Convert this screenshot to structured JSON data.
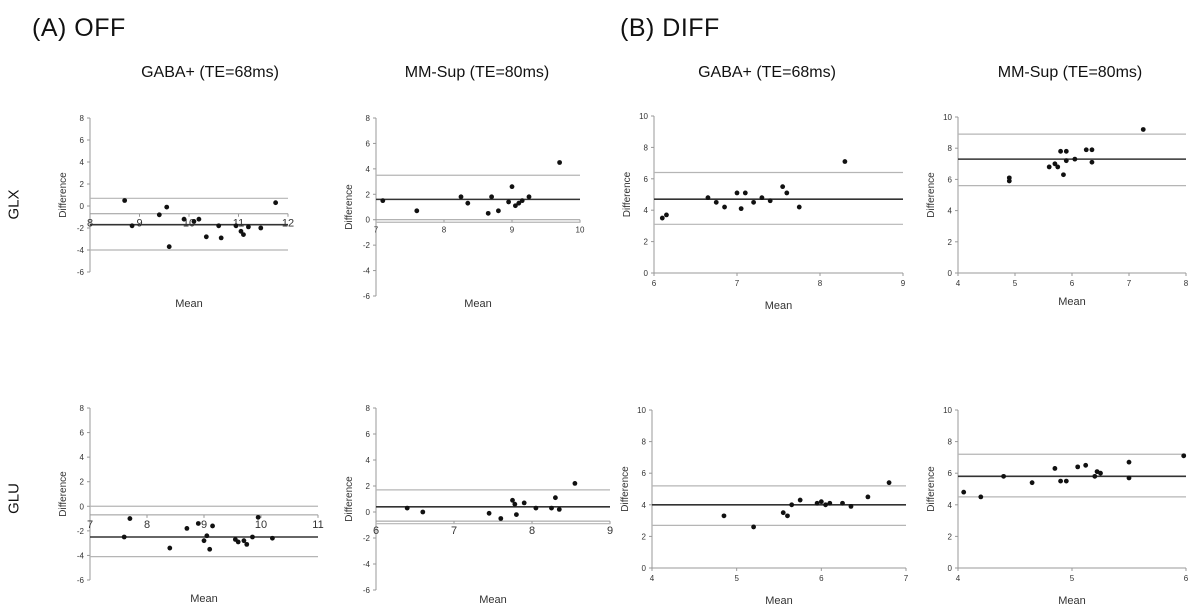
{
  "headers": {
    "section_a": "(A) OFF",
    "section_b": "(B) DIFF",
    "col1": "GABA+ (TE=68ms)",
    "col2": "MM-Sup (TE=80ms)",
    "col3": "GABA+ (TE=68ms)",
    "col4": "MM-Sup (TE=80ms)",
    "row1": "GLX",
    "row2": "GLU"
  },
  "chart_data": [
    {
      "id": "off-glx-gaba",
      "type": "scatter",
      "xlabel": "Mean",
      "ylabel": "Difference",
      "xlim": [
        8,
        12
      ],
      "ylim": [
        -6,
        8
      ],
      "xticks": [
        8,
        9,
        10,
        11,
        12
      ],
      "yticks": [
        -6,
        -4,
        -2,
        0,
        2,
        4,
        6,
        8
      ],
      "xaxis_at": -0.7,
      "hlines": [
        {
          "y": 0.7,
          "style": "limit"
        },
        {
          "y": -1.7,
          "style": "mean"
        },
        {
          "y": -4.0,
          "style": "limit"
        }
      ],
      "points": [
        [
          8.7,
          0.5
        ],
        [
          8.85,
          -1.8
        ],
        [
          9.4,
          -0.8
        ],
        [
          9.55,
          -0.1
        ],
        [
          9.6,
          -3.7
        ],
        [
          9.9,
          -1.2
        ],
        [
          10.1,
          -1.4
        ],
        [
          10.2,
          -1.2
        ],
        [
          10.35,
          -2.8
        ],
        [
          10.6,
          -1.8
        ],
        [
          10.65,
          -2.9
        ],
        [
          10.95,
          -1.8
        ],
        [
          11.05,
          -2.3
        ],
        [
          11.1,
          -2.6
        ],
        [
          11.2,
          -1.9
        ],
        [
          11.45,
          -2.0
        ],
        [
          11.75,
          0.3
        ]
      ]
    },
    {
      "id": "off-glx-mmsup",
      "type": "scatter",
      "xlabel": "Mean",
      "ylabel": "Difference",
      "xlim": [
        7,
        10
      ],
      "ylim": [
        -6,
        8
      ],
      "xticks": [
        7,
        8,
        9,
        10
      ],
      "yticks": [
        -6,
        -4,
        -2,
        0,
        2,
        4,
        6,
        8
      ],
      "xaxis_at": 0,
      "hlines": [
        {
          "y": 3.5,
          "style": "limit"
        },
        {
          "y": 1.6,
          "style": "mean"
        },
        {
          "y": -0.2,
          "style": "limit"
        }
      ],
      "points": [
        [
          7.1,
          1.5
        ],
        [
          7.6,
          0.7
        ],
        [
          8.25,
          1.8
        ],
        [
          8.35,
          1.3
        ],
        [
          8.65,
          0.5
        ],
        [
          8.7,
          1.8
        ],
        [
          8.8,
          0.7
        ],
        [
          8.95,
          1.4
        ],
        [
          9.0,
          2.6
        ],
        [
          9.05,
          1.1
        ],
        [
          9.1,
          1.3
        ],
        [
          9.15,
          1.5
        ],
        [
          9.25,
          1.8
        ],
        [
          9.7,
          4.5
        ]
      ]
    },
    {
      "id": "diff-glx-gaba",
      "type": "scatter",
      "xlabel": "Mean",
      "ylabel": "Difference",
      "xlim": [
        6,
        9
      ],
      "ylim": [
        0,
        10
      ],
      "xticks": [
        6,
        7,
        8,
        9
      ],
      "yticks": [
        0,
        2,
        4,
        6,
        8,
        10
      ],
      "xaxis_at": 0,
      "hlines": [
        {
          "y": 6.4,
          "style": "limit"
        },
        {
          "y": 4.7,
          "style": "mean"
        },
        {
          "y": 3.1,
          "style": "limit"
        }
      ],
      "points": [
        [
          6.1,
          3.5
        ],
        [
          6.15,
          3.7
        ],
        [
          6.65,
          4.8
        ],
        [
          6.75,
          4.5
        ],
        [
          6.85,
          4.2
        ],
        [
          7.0,
          5.1
        ],
        [
          7.05,
          4.1
        ],
        [
          7.1,
          5.1
        ],
        [
          7.2,
          4.5
        ],
        [
          7.3,
          4.8
        ],
        [
          7.4,
          4.6
        ],
        [
          7.55,
          5.5
        ],
        [
          7.6,
          5.1
        ],
        [
          7.75,
          4.2
        ],
        [
          8.3,
          7.1
        ]
      ]
    },
    {
      "id": "diff-glx-mmsup",
      "type": "scatter",
      "xlabel": "Mean",
      "ylabel": "Difference",
      "xlim": [
        4,
        8
      ],
      "ylim": [
        0,
        10
      ],
      "xticks": [
        4,
        5,
        6,
        7,
        8
      ],
      "yticks": [
        0,
        2,
        4,
        6,
        8,
        10
      ],
      "xaxis_at": 0,
      "hlines": [
        {
          "y": 8.9,
          "style": "limit"
        },
        {
          "y": 7.3,
          "style": "mean"
        },
        {
          "y": 5.6,
          "style": "limit"
        }
      ],
      "points": [
        [
          4.9,
          6.1
        ],
        [
          4.9,
          5.9
        ],
        [
          5.6,
          6.8
        ],
        [
          5.7,
          7.0
        ],
        [
          5.75,
          6.8
        ],
        [
          5.8,
          7.8
        ],
        [
          5.85,
          6.3
        ],
        [
          5.9,
          7.8
        ],
        [
          5.9,
          7.2
        ],
        [
          6.05,
          7.3
        ],
        [
          6.25,
          7.9
        ],
        [
          6.35,
          7.1
        ],
        [
          6.35,
          7.9
        ],
        [
          7.25,
          9.2
        ]
      ]
    },
    {
      "id": "off-glu-gaba",
      "type": "scatter",
      "xlabel": "Mean",
      "ylabel": "Difference",
      "xlim": [
        7,
        11
      ],
      "ylim": [
        -6,
        8
      ],
      "xticks": [
        7,
        8,
        9,
        10,
        11
      ],
      "yticks": [
        -6,
        -4,
        -2,
        0,
        2,
        4,
        6,
        8
      ],
      "xaxis_at": -0.7,
      "hlines": [
        {
          "y": 0.0,
          "style": "limit"
        },
        {
          "y": -2.5,
          "style": "mean"
        },
        {
          "y": -4.1,
          "style": "limit"
        }
      ],
      "points": [
        [
          7.6,
          -2.5
        ],
        [
          7.7,
          -1.0
        ],
        [
          8.4,
          -3.4
        ],
        [
          8.7,
          -1.8
        ],
        [
          8.9,
          -1.4
        ],
        [
          9.0,
          -2.8
        ],
        [
          9.05,
          -2.4
        ],
        [
          9.1,
          -3.5
        ],
        [
          9.15,
          -1.6
        ],
        [
          9.55,
          -2.7
        ],
        [
          9.6,
          -2.9
        ],
        [
          9.7,
          -2.8
        ],
        [
          9.75,
          -3.1
        ],
        [
          9.85,
          -2.5
        ],
        [
          9.95,
          -0.9
        ],
        [
          10.2,
          -2.6
        ]
      ]
    },
    {
      "id": "off-glu-mmsup",
      "type": "scatter",
      "xlabel": "Mean",
      "ylabel": "Difference",
      "xlim": [
        6,
        9
      ],
      "ylim": [
        -6,
        8
      ],
      "xticks": [
        6,
        7,
        8,
        9
      ],
      "yticks": [
        -6,
        -4,
        -2,
        0,
        2,
        4,
        6,
        8
      ],
      "xaxis_at": -0.7,
      "hlines": [
        {
          "y": 1.7,
          "style": "limit"
        },
        {
          "y": 0.4,
          "style": "mean"
        },
        {
          "y": -0.9,
          "style": "limit"
        }
      ],
      "points": [
        [
          6.4,
          0.3
        ],
        [
          6.6,
          0.0
        ],
        [
          7.45,
          -0.1
        ],
        [
          7.6,
          -0.5
        ],
        [
          7.75,
          0.9
        ],
        [
          7.78,
          0.6
        ],
        [
          7.8,
          -0.2
        ],
        [
          7.9,
          0.7
        ],
        [
          8.05,
          0.3
        ],
        [
          8.25,
          0.3
        ],
        [
          8.3,
          1.1
        ],
        [
          8.35,
          0.2
        ],
        [
          8.55,
          2.2
        ]
      ]
    },
    {
      "id": "diff-glu-gaba",
      "type": "scatter",
      "xlabel": "Mean",
      "ylabel": "Difference",
      "xlim": [
        4,
        7
      ],
      "ylim": [
        0,
        10
      ],
      "xticks": [
        4,
        5,
        6,
        7
      ],
      "yticks": [
        0,
        2,
        4,
        6,
        8,
        10
      ],
      "xaxis_at": 0,
      "hlines": [
        {
          "y": 5.2,
          "style": "limit"
        },
        {
          "y": 4.0,
          "style": "mean"
        },
        {
          "y": 2.7,
          "style": "limit"
        }
      ],
      "points": [
        [
          4.85,
          3.3
        ],
        [
          5.2,
          2.6
        ],
        [
          5.55,
          3.5
        ],
        [
          5.6,
          3.3
        ],
        [
          5.65,
          4.0
        ],
        [
          5.75,
          4.3
        ],
        [
          5.95,
          4.1
        ],
        [
          6.0,
          4.2
        ],
        [
          6.05,
          4.0
        ],
        [
          6.1,
          4.1
        ],
        [
          6.25,
          4.1
        ],
        [
          6.35,
          3.9
        ],
        [
          6.55,
          4.5
        ],
        [
          6.8,
          5.4
        ]
      ]
    },
    {
      "id": "diff-glu-mmsup",
      "type": "scatter",
      "xlabel": "Mean",
      "ylabel": "Difference",
      "xlim": [
        4,
        6
      ],
      "ylim": [
        0,
        10
      ],
      "xticks": [
        4,
        5,
        6
      ],
      "yticks": [
        0,
        2,
        4,
        6,
        8,
        10
      ],
      "xaxis_at": 0,
      "hlines": [
        {
          "y": 7.2,
          "style": "limit"
        },
        {
          "y": 5.8,
          "style": "mean"
        },
        {
          "y": 4.5,
          "style": "limit"
        }
      ],
      "points": [
        [
          4.05,
          4.8
        ],
        [
          4.2,
          4.5
        ],
        [
          4.4,
          5.8
        ],
        [
          4.65,
          5.4
        ],
        [
          4.85,
          6.3
        ],
        [
          4.9,
          5.5
        ],
        [
          4.95,
          5.5
        ],
        [
          5.05,
          6.4
        ],
        [
          5.12,
          6.5
        ],
        [
          5.2,
          5.8
        ],
        [
          5.22,
          6.1
        ],
        [
          5.25,
          6.0
        ],
        [
          5.5,
          5.7
        ],
        [
          5.5,
          6.7
        ],
        [
          5.98,
          7.1
        ]
      ]
    }
  ]
}
